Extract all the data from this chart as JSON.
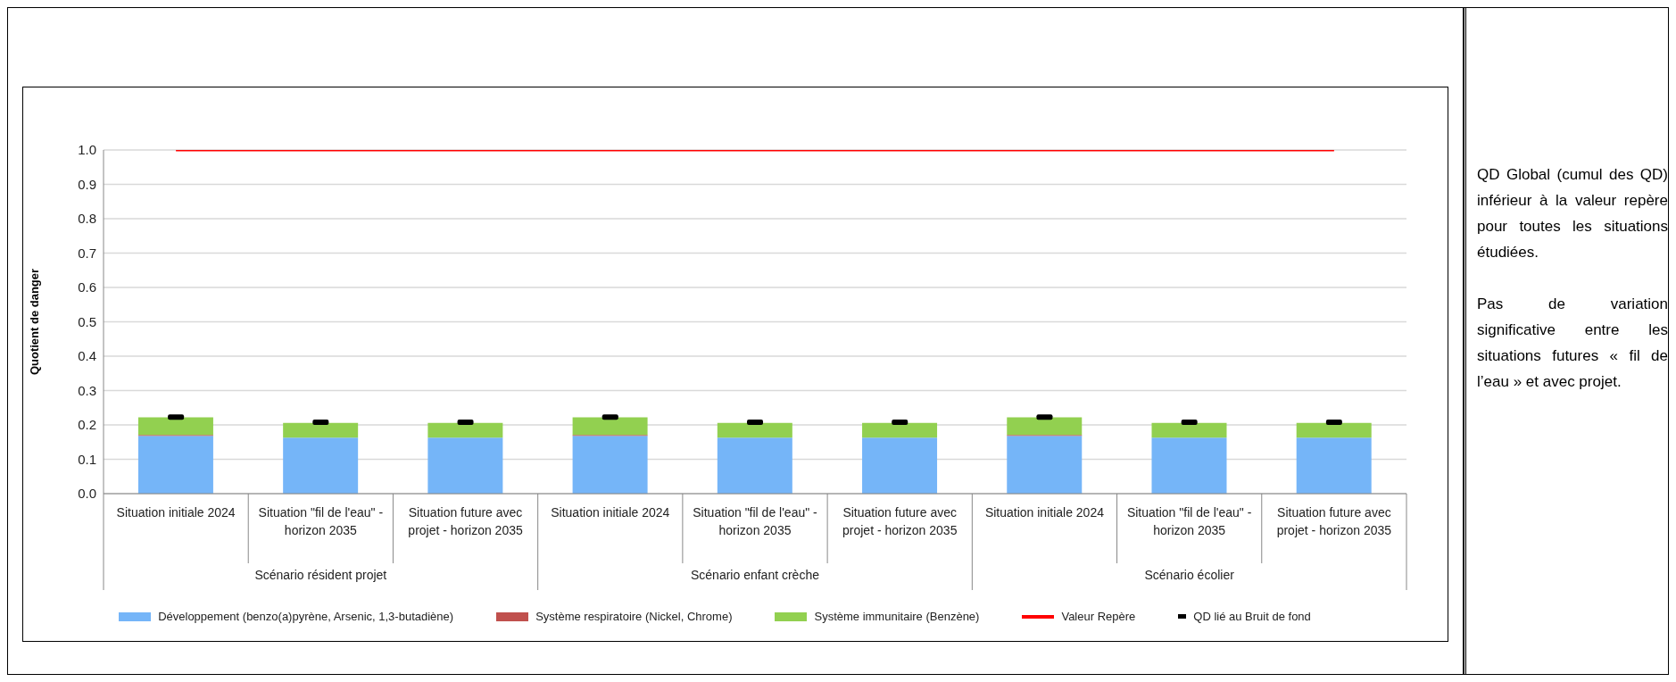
{
  "chart_data": {
    "type": "bar",
    "stacked": true,
    "ylabel": "Quotient de danger",
    "categories": [
      "Situation initiale 2024",
      "Situation \"fil de l'eau\" - horizon 2035",
      "Situation future avec projet - horizon 2035",
      "Situation initiale 2024",
      "Situation \"fil de l'eau\" - horizon 2035",
      "Situation future avec projet - horizon 2035",
      "Situation initiale 2024",
      "Situation \"fil de l'eau\" - horizon 2035",
      "Situation future avec projet - horizon 2035"
    ],
    "series": [
      {
        "name": "Développement (benzo(a)pyrène, Arsenic, 1,3-butadiène)",
        "color": "#75b5f8",
        "values": [
          0.168,
          0.163,
          0.163,
          0.168,
          0.163,
          0.163,
          0.168,
          0.163,
          0.163
        ]
      },
      {
        "name": "Système respiratoire (Nickel, Chrome)",
        "color": "#c0504d",
        "values": [
          0.003,
          null,
          null,
          0.003,
          null,
          null,
          0.003,
          null,
          null
        ]
      },
      {
        "name": "Système immunitaire (Benzène)",
        "color": "#92d050",
        "values": [
          0.051,
          0.043,
          0.043,
          0.051,
          0.043,
          0.043,
          0.051,
          0.043,
          0.043
        ]
      },
      {
        "name": "Valeur Repère",
        "type": "line",
        "color": "#ff0000",
        "values": [
          1,
          1,
          1,
          1,
          1,
          1,
          1,
          1,
          1
        ]
      },
      {
        "name": "QD lié au Bruit de fond",
        "type": "scatter",
        "color": "#000000",
        "values": [
          0.223,
          0.208,
          0.208,
          0.223,
          0.208,
          0.208,
          0.223,
          0.208,
          0.208
        ]
      }
    ],
    "ylim": [
      0,
      1
    ],
    "yticks": [
      {
        "value": 0,
        "label": "0.0"
      },
      0.1,
      0.2,
      0.3,
      0.4,
      0.5,
      0.6,
      0.7,
      0.8,
      0.9,
      {
        "value": 1,
        "label": "1.0"
      }
    ],
    "grid": "y",
    "legend": "bottom",
    "annotations": [
      "Scénario résident projet",
      "Scénario enfant crèche",
      "Scénario écolier",
      "QD Global (cumul des QD) inférieur à la valeur repère pour toutes les situations étudiées.",
      "Pas de variation significative entre les situations futures « fil de l’eau » et avec projet."
    ]
  }
}
